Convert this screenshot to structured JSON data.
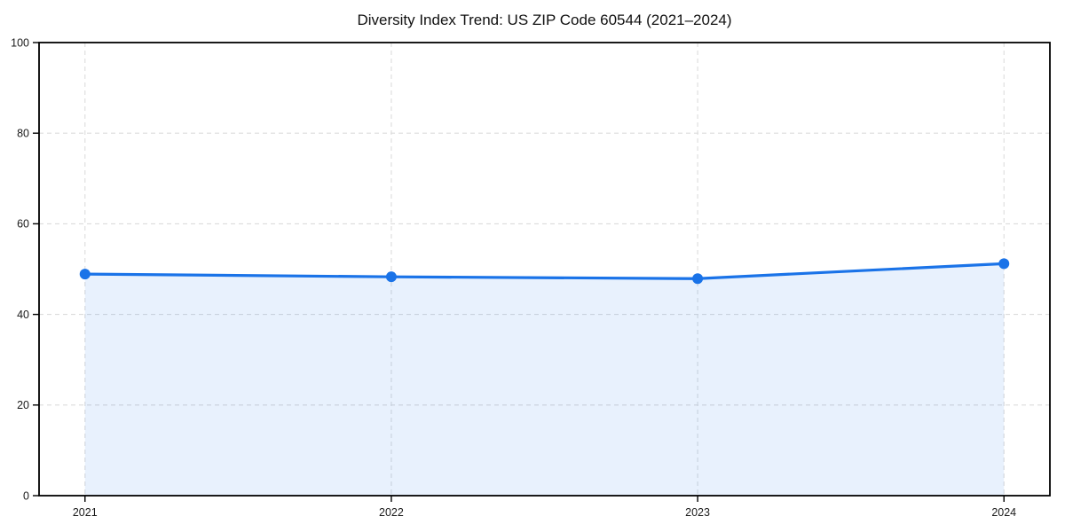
{
  "page": {
    "background": "#ffffff"
  },
  "chart_data": {
    "type": "area",
    "title": "Diversity Index Trend: US ZIP Code 60544 (2021–2024)",
    "x": [
      2021,
      2022,
      2023,
      2024
    ],
    "categories": [
      "2021",
      "2022",
      "2023",
      "2024"
    ],
    "series": [
      {
        "name": "Diversity Index",
        "values": [
          48.9,
          48.3,
          47.9,
          51.2
        ]
      }
    ],
    "xlabel": "",
    "ylabel": "",
    "ylim": [
      0,
      100
    ],
    "yticks": [
      0,
      20,
      40,
      60,
      80,
      100
    ],
    "xticks": [
      "2021",
      "2022",
      "2023",
      "2024"
    ],
    "grid": "dashed-both",
    "legend": "none",
    "colors": {
      "line": "#1a73e8",
      "marker": "#1a73e8",
      "fill": "rgba(26,115,232,0.10)",
      "grid": "#dcdcdc",
      "spine": "#000000",
      "tick_label": "#1a1a1a",
      "title": "#111111"
    }
  }
}
